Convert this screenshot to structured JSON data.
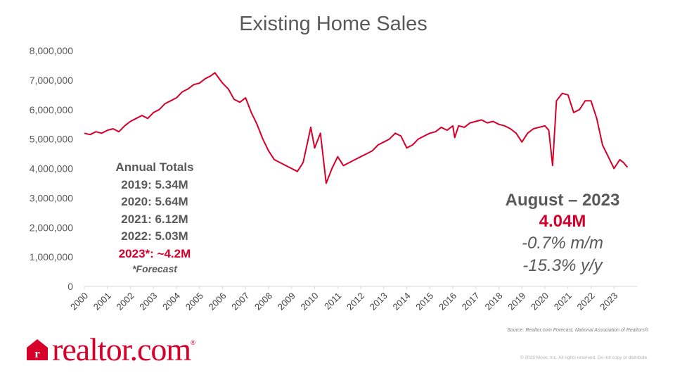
{
  "chart_data": {
    "type": "line",
    "title": "Existing Home Sales",
    "xlabel": "",
    "ylabel": "",
    "ylim": [
      0,
      8000000
    ],
    "y_ticks": [
      "0",
      "1,000,000",
      "2,000,000",
      "3,000,000",
      "4,000,000",
      "5,000,000",
      "6,000,000",
      "7,000,000",
      "8,000,000"
    ],
    "x_ticks": [
      "2000",
      "2001",
      "2002",
      "2003",
      "2004",
      "2005",
      "2006",
      "2007",
      "2008",
      "2009",
      "2010",
      "2011",
      "2012",
      "2013",
      "2014",
      "2015",
      "2016",
      "2017",
      "2018",
      "2019",
      "2020",
      "2021",
      "2022",
      "2023"
    ],
    "grid": false,
    "series": [
      {
        "color": "#d6002a",
        "x": [
          "2000-01",
          "2000-04",
          "2000-07",
          "2000-10",
          "2001-01",
          "2001-04",
          "2001-07",
          "2001-10",
          "2002-01",
          "2002-04",
          "2002-07",
          "2002-10",
          "2003-01",
          "2003-04",
          "2003-07",
          "2003-10",
          "2004-01",
          "2004-04",
          "2004-07",
          "2004-10",
          "2005-01",
          "2005-04",
          "2005-07",
          "2005-09",
          "2006-01",
          "2006-04",
          "2006-07",
          "2006-10",
          "2007-01",
          "2007-04",
          "2007-07",
          "2007-10",
          "2008-01",
          "2008-04",
          "2008-07",
          "2008-10",
          "2009-01",
          "2009-04",
          "2009-07",
          "2009-11",
          "2010-01",
          "2010-04",
          "2010-07",
          "2010-10",
          "2011-01",
          "2011-04",
          "2011-07",
          "2011-10",
          "2012-01",
          "2012-04",
          "2012-07",
          "2012-10",
          "2013-01",
          "2013-04",
          "2013-07",
          "2013-10",
          "2014-01",
          "2014-04",
          "2014-07",
          "2014-10",
          "2015-01",
          "2015-04",
          "2015-07",
          "2015-10",
          "2016-01",
          "2016-02",
          "2016-04",
          "2016-07",
          "2016-10",
          "2017-01",
          "2017-04",
          "2017-07",
          "2017-10",
          "2018-01",
          "2018-04",
          "2018-07",
          "2018-10",
          "2019-01",
          "2019-04",
          "2019-07",
          "2019-10",
          "2020-01",
          "2020-03",
          "2020-05",
          "2020-07",
          "2020-10",
          "2021-01",
          "2021-04",
          "2021-07",
          "2021-10",
          "2022-01",
          "2022-04",
          "2022-07",
          "2022-10",
          "2023-01",
          "2023-04",
          "2023-06",
          "2023-08"
        ],
        "values": [
          5200000,
          5150000,
          5250000,
          5200000,
          5300000,
          5350000,
          5250000,
          5450000,
          5600000,
          5700000,
          5800000,
          5700000,
          5900000,
          6000000,
          6200000,
          6300000,
          6400000,
          6600000,
          6700000,
          6850000,
          6900000,
          7050000,
          7150000,
          7250000,
          6900000,
          6700000,
          6350000,
          6250000,
          6400000,
          5900000,
          5500000,
          5000000,
          4600000,
          4300000,
          4200000,
          4100000,
          4000000,
          3900000,
          4200000,
          5400000,
          4700000,
          5200000,
          3500000,
          4000000,
          4400000,
          4100000,
          4200000,
          4300000,
          4400000,
          4500000,
          4600000,
          4800000,
          4900000,
          5000000,
          5200000,
          5100000,
          4700000,
          4800000,
          5000000,
          5100000,
          5200000,
          5250000,
          5400000,
          5300000,
          5450000,
          5050000,
          5450000,
          5400000,
          5550000,
          5600000,
          5650000,
          5550000,
          5600000,
          5500000,
          5450000,
          5350000,
          5200000,
          4900000,
          5200000,
          5350000,
          5400000,
          5450000,
          5300000,
          4100000,
          6300000,
          6550000,
          6500000,
          5900000,
          6000000,
          6300000,
          6300000,
          5700000,
          4800000,
          4400000,
          4000000,
          4300000,
          4200000,
          4040000
        ]
      }
    ]
  },
  "annual_totals": {
    "heading": "Annual Totals",
    "rows": [
      {
        "text": "2019: 5.34M",
        "highlight": false
      },
      {
        "text": "2020: 5.64M",
        "highlight": false
      },
      {
        "text": "2021: 6.12M",
        "highlight": false
      },
      {
        "text": "2022: 5.03M",
        "highlight": false
      },
      {
        "text": "2023*: ~4.2M",
        "highlight": true
      }
    ],
    "note": "*Forecast"
  },
  "latest": {
    "period": "August – 2023",
    "value": "4.04M",
    "mom": "-0.7%  m/m",
    "yoy": "-15.3%  y/y"
  },
  "source": "Source:  Realtor.com Forecast,  National Association of Realtors®",
  "copyright": "© 2023 Move, Inc. All rights reserved. Do not copy or distribute.",
  "logo": {
    "text": "realtor.com",
    "reg": "®"
  },
  "colors": {
    "line": "#d6002a",
    "accent": "#d6002a",
    "text": "#595959",
    "axis": "#d9d9d9"
  }
}
